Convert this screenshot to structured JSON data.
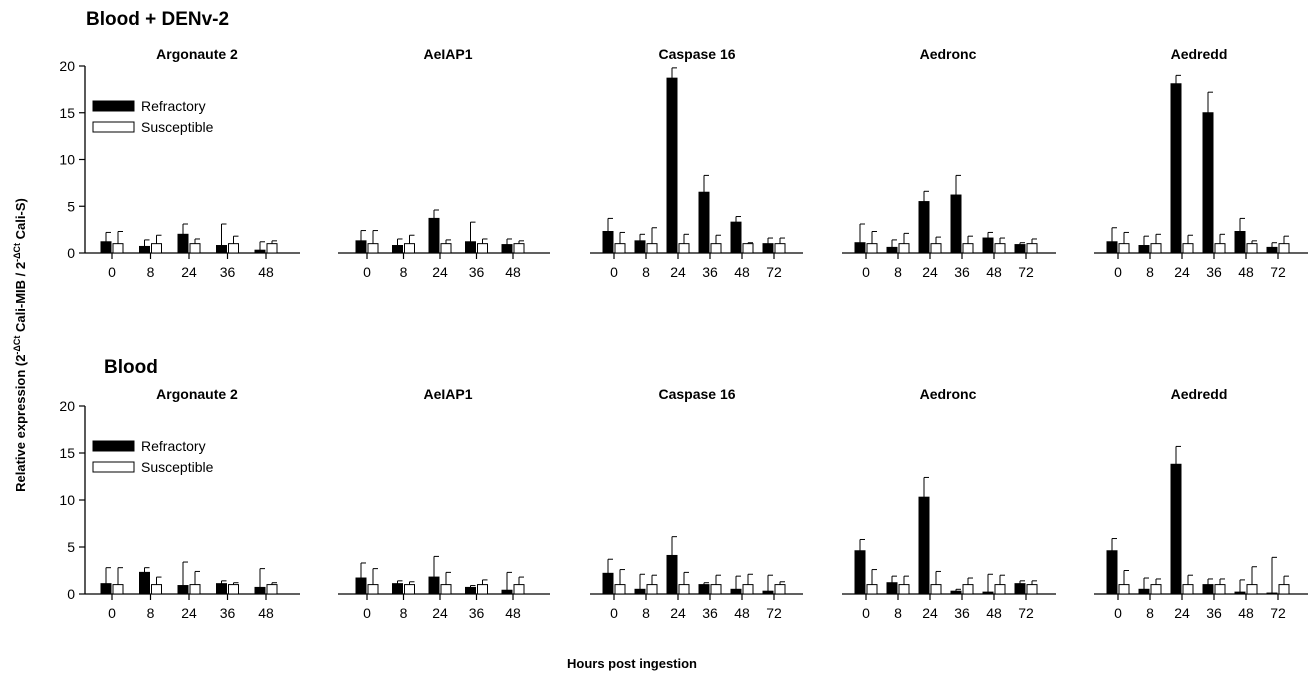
{
  "row_titles": [
    "Blood + DENv-2",
    "Blood"
  ],
  "ylabel_parts": {
    "prefix": "Relative expression (2",
    "sup1": "-ΔCt",
    "middle": " Cali-MIB / 2",
    "sup2": "-ΔCt",
    "suffix": " Cali-S)"
  },
  "xlabel": "Hours post ingestion",
  "legend": {
    "refractory": "Refractory",
    "susceptible": "Susceptible"
  },
  "colors": {
    "refractory": "#000000",
    "susceptible": "#ffffff",
    "axis": "#000000"
  },
  "chart_data": [
    {
      "type": "bar",
      "row": 0,
      "title": "Argonaute 2",
      "categories": [
        "0",
        "8",
        "24",
        "36",
        "48"
      ],
      "ylim": [
        0,
        20
      ],
      "yticks": [
        0,
        5,
        10,
        15,
        20
      ],
      "series": [
        {
          "name": "Refractory",
          "values": [
            1.2,
            0.7,
            2.0,
            0.8,
            0.3
          ],
          "errors": [
            1.0,
            0.7,
            1.1,
            2.3,
            0.9
          ]
        },
        {
          "name": "Susceptible",
          "values": [
            1.0,
            1.0,
            1.0,
            1.0,
            1.0
          ],
          "errors": [
            1.3,
            0.9,
            0.5,
            0.8,
            0.3
          ]
        }
      ]
    },
    {
      "type": "bar",
      "row": 0,
      "title": "AeIAP1",
      "categories": [
        "0",
        "8",
        "24",
        "36",
        "48"
      ],
      "ylim": [
        0,
        20
      ],
      "series": [
        {
          "name": "Refractory",
          "values": [
            1.3,
            0.8,
            3.7,
            1.2,
            0.9
          ],
          "errors": [
            1.1,
            0.7,
            0.9,
            2.1,
            0.6
          ]
        },
        {
          "name": "Susceptible",
          "values": [
            1.0,
            1.0,
            1.0,
            1.0,
            1.0
          ],
          "errors": [
            1.4,
            0.9,
            0.4,
            0.5,
            0.3
          ]
        }
      ]
    },
    {
      "type": "bar",
      "row": 0,
      "title": "Caspase 16",
      "categories": [
        "0",
        "8",
        "24",
        "36",
        "48",
        "72"
      ],
      "ylim": [
        0,
        20
      ],
      "series": [
        {
          "name": "Refractory",
          "values": [
            2.3,
            1.3,
            18.7,
            6.5,
            3.3,
            1.0
          ],
          "errors": [
            1.4,
            0.7,
            1.1,
            1.8,
            0.6,
            0.6
          ]
        },
        {
          "name": "Susceptible",
          "values": [
            1.0,
            1.0,
            1.0,
            1.0,
            1.0,
            1.0
          ],
          "errors": [
            1.2,
            1.7,
            1.0,
            0.9,
            0.1,
            0.6
          ]
        }
      ]
    },
    {
      "type": "bar",
      "row": 0,
      "title": "Aedronc",
      "categories": [
        "0",
        "8",
        "24",
        "36",
        "48",
        "72"
      ],
      "ylim": [
        0,
        20
      ],
      "series": [
        {
          "name": "Refractory",
          "values": [
            1.1,
            0.6,
            5.5,
            6.2,
            1.6,
            0.9
          ],
          "errors": [
            2.0,
            0.8,
            1.1,
            2.1,
            0.6,
            0.2
          ]
        },
        {
          "name": "Susceptible",
          "values": [
            1.0,
            1.0,
            1.0,
            1.0,
            1.0,
            1.0
          ],
          "errors": [
            1.3,
            1.1,
            0.7,
            0.8,
            0.6,
            0.5
          ]
        }
      ]
    },
    {
      "type": "bar",
      "row": 0,
      "title": "Aedredd",
      "categories": [
        "0",
        "8",
        "24",
        "36",
        "48",
        "72"
      ],
      "ylim": [
        0,
        20
      ],
      "series": [
        {
          "name": "Refractory",
          "values": [
            1.2,
            0.8,
            18.1,
            15.0,
            2.3,
            0.6
          ],
          "errors": [
            1.5,
            1.0,
            0.9,
            2.2,
            1.4,
            0.5
          ]
        },
        {
          "name": "Susceptible",
          "values": [
            1.0,
            1.0,
            1.0,
            1.0,
            1.0,
            1.0
          ],
          "errors": [
            1.2,
            1.0,
            0.9,
            1.0,
            0.3,
            0.8
          ]
        }
      ]
    },
    {
      "type": "bar",
      "row": 1,
      "title": "Argonaute 2",
      "categories": [
        "0",
        "8",
        "24",
        "36",
        "48"
      ],
      "ylim": [
        0,
        20
      ],
      "yticks": [
        0,
        5,
        10,
        15,
        20
      ],
      "series": [
        {
          "name": "Refractory",
          "values": [
            1.1,
            2.3,
            0.9,
            1.1,
            0.7
          ],
          "errors": [
            1.7,
            0.5,
            2.5,
            0.3,
            2.0
          ]
        },
        {
          "name": "Susceptible",
          "values": [
            1.0,
            1.0,
            1.0,
            1.0,
            1.0
          ],
          "errors": [
            1.8,
            0.8,
            1.4,
            0.2,
            0.2
          ]
        }
      ]
    },
    {
      "type": "bar",
      "row": 1,
      "title": "AeIAP1",
      "categories": [
        "0",
        "8",
        "24",
        "36",
        "48"
      ],
      "ylim": [
        0,
        20
      ],
      "series": [
        {
          "name": "Refractory",
          "values": [
            1.7,
            1.1,
            1.8,
            0.7,
            0.4
          ],
          "errors": [
            1.6,
            0.3,
            2.2,
            0.2,
            1.9
          ]
        },
        {
          "name": "Susceptible",
          "values": [
            1.0,
            1.0,
            1.0,
            1.0,
            1.0
          ],
          "errors": [
            1.7,
            0.3,
            1.3,
            0.5,
            0.8
          ]
        }
      ]
    },
    {
      "type": "bar",
      "row": 1,
      "title": "Caspase 16",
      "categories": [
        "0",
        "8",
        "24",
        "36",
        "48",
        "72"
      ],
      "ylim": [
        0,
        20
      ],
      "series": [
        {
          "name": "Refractory",
          "values": [
            2.2,
            0.5,
            4.1,
            1.0,
            0.5,
            0.3
          ],
          "errors": [
            1.5,
            1.6,
            2.0,
            0.2,
            1.4,
            1.7
          ]
        },
        {
          "name": "Susceptible",
          "values": [
            1.0,
            1.0,
            1.0,
            1.0,
            1.0,
            1.0
          ],
          "errors": [
            1.6,
            1.0,
            1.3,
            1.0,
            1.1,
            0.3
          ]
        }
      ]
    },
    {
      "type": "bar",
      "row": 1,
      "title": "Aedronc",
      "categories": [
        "0",
        "8",
        "24",
        "36",
        "48",
        "72"
      ],
      "ylim": [
        0,
        20
      ],
      "series": [
        {
          "name": "Refractory",
          "values": [
            4.6,
            1.2,
            10.3,
            0.3,
            0.2,
            1.1
          ],
          "errors": [
            1.2,
            0.7,
            2.1,
            0.2,
            1.9,
            0.3
          ]
        },
        {
          "name": "Susceptible",
          "values": [
            1.0,
            1.0,
            1.0,
            1.0,
            1.0,
            1.0
          ],
          "errors": [
            1.6,
            0.9,
            1.4,
            0.7,
            1.0,
            0.4
          ]
        }
      ]
    },
    {
      "type": "bar",
      "row": 1,
      "title": "Aedredd",
      "categories": [
        "0",
        "8",
        "24",
        "36",
        "48",
        "72"
      ],
      "ylim": [
        0,
        20
      ],
      "series": [
        {
          "name": "Refractory",
          "values": [
            4.6,
            0.5,
            13.8,
            1.0,
            0.2,
            0.1
          ],
          "errors": [
            1.3,
            1.2,
            1.9,
            0.6,
            1.3,
            3.8
          ]
        },
        {
          "name": "Susceptible",
          "values": [
            1.0,
            1.0,
            1.0,
            1.0,
            1.0,
            1.0
          ],
          "errors": [
            1.5,
            0.6,
            1.0,
            0.6,
            1.9,
            0.9
          ]
        }
      ]
    }
  ]
}
